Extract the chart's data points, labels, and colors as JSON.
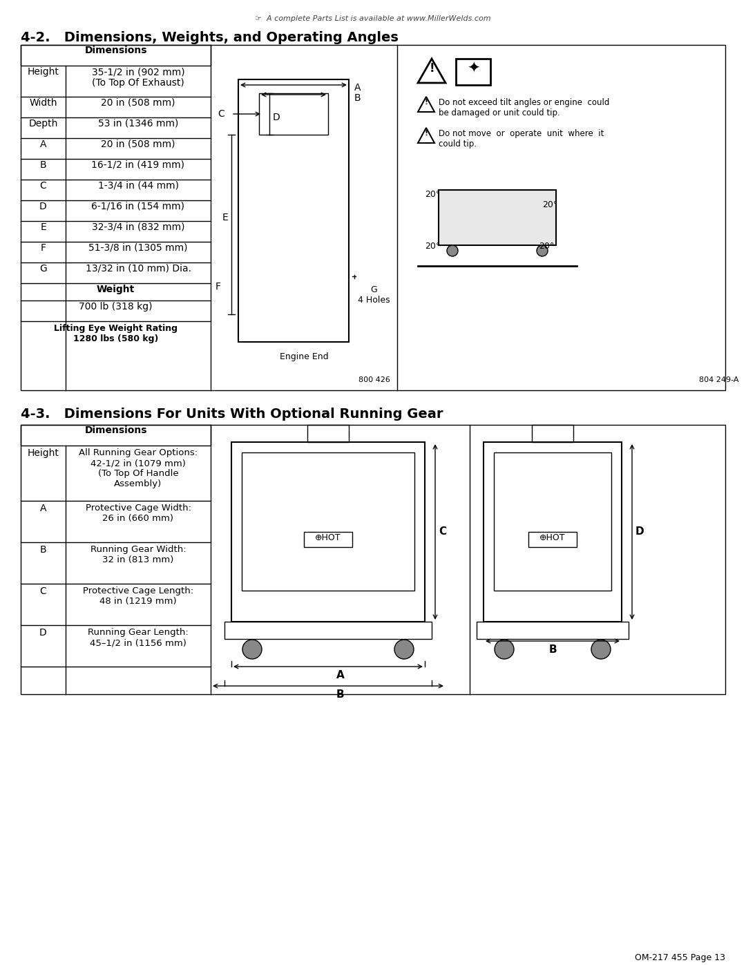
{
  "page_header": "☞  A complete Parts List is available at www.MillerWelds.com",
  "section1_title": "4-2.   Dimensions, Weights, and Operating Angles",
  "section2_title": "4-3.   Dimensions For Units With Optional Running Gear",
  "page_footer": "OM-217 455 Page 13",
  "table1_header": "Dimensions",
  "table1_rows": [
    [
      "Height",
      "35-1/2 in (902 mm)\n(To Top Of Exhaust)"
    ],
    [
      "Width",
      "20 in (508 mm)"
    ],
    [
      "Depth",
      "53 in (1346 mm)"
    ],
    [
      "A",
      "20 in (508 mm)"
    ],
    [
      "B",
      "16-1/2 in (419 mm)"
    ],
    [
      "C",
      "1-3/4 in (44 mm)"
    ],
    [
      "D",
      "6-1/16 in (154 mm)"
    ],
    [
      "E",
      "32-3/4 in (832 mm)"
    ],
    [
      "F",
      "51-3/8 in (1305 mm)"
    ],
    [
      "G",
      "13/32 in (10 mm) Dia."
    ]
  ],
  "table1_weight_header": "Weight",
  "table1_weight_value": "700 lb (318 kg)",
  "table1_lifting_label": "Lifting Eye Weight Rating\n1280 lbs (580 kg)",
  "ref1": "800 426",
  "ref2": "804 249-A",
  "table2_header": "Dimensions",
  "table2_rows": [
    [
      "Height",
      "All Running Gear Options:\n42-1/2 in (1079 mm)\n(To Top Of Handle\nAssembly)"
    ],
    [
      "A",
      "Protective Cage Width:\n26 in (660 mm)"
    ],
    [
      "B",
      "Running Gear Width:\n32 in (813 mm)"
    ],
    [
      "C",
      "Protective Cage Length:\n48 in (1219 mm)"
    ],
    [
      "D",
      "Running Gear Length:\n45–1/2 in (1156 mm)"
    ]
  ],
  "warning1": "Do not exceed tilt angles or engine  could\nbe damaged or unit could tip.",
  "warning2": "Do not move  or  operate  unit  where  it\ncould tip.",
  "bg_color": "#ffffff",
  "border_color": "#000000",
  "text_color": "#000000",
  "angles": [
    "20°",
    "20°",
    "20°",
    "20°"
  ]
}
